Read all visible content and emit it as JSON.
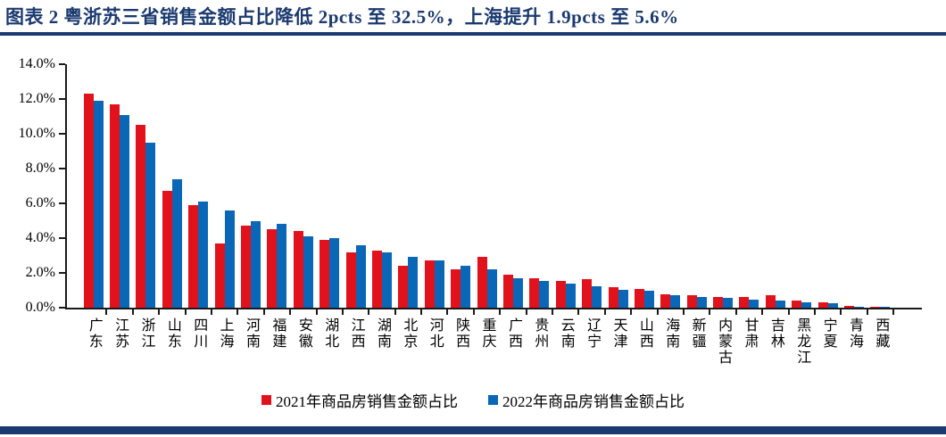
{
  "header": {
    "title": "图表 2  粤浙苏三省销售金额占比降低 2pcts 至 32.5%，上海提升 1.9pcts 至 5.6%"
  },
  "chart_data": {
    "type": "bar",
    "title": "图表 2  粤浙苏三省销售金额占比降低 2pcts 至 32.5%，上海提升 1.9pcts 至 5.6%",
    "categories": [
      "广东",
      "江苏",
      "浙江",
      "山东",
      "四川",
      "上海",
      "河南",
      "福建",
      "安徽",
      "湖北",
      "江西",
      "湖南",
      "北京",
      "河北",
      "陕西",
      "重庆",
      "广西",
      "贵州",
      "云南",
      "辽宁",
      "天津",
      "山西",
      "海南",
      "新疆",
      "内蒙古",
      "甘肃",
      "吉林",
      "黑龙江",
      "宁夏",
      "青海",
      "西藏"
    ],
    "series": [
      {
        "name": "2021年商品房销售金额占比",
        "color": "#e2121c",
        "values": [
          12.3,
          11.7,
          10.5,
          6.7,
          5.9,
          3.7,
          4.7,
          4.5,
          4.4,
          3.9,
          3.2,
          3.3,
          2.4,
          2.7,
          2.2,
          2.9,
          1.9,
          1.7,
          1.55,
          1.65,
          1.2,
          1.1,
          0.75,
          0.7,
          0.6,
          0.6,
          0.7,
          0.4,
          0.3,
          0.1,
          0.05
        ]
      },
      {
        "name": "2022年商品房销售金额占比",
        "color": "#0a66b7",
        "values": [
          11.9,
          11.1,
          9.5,
          7.4,
          6.1,
          5.6,
          5.0,
          4.8,
          4.1,
          4.0,
          3.6,
          3.2,
          2.9,
          2.7,
          2.4,
          2.2,
          1.7,
          1.55,
          1.4,
          1.25,
          1.05,
          1.0,
          0.7,
          0.6,
          0.55,
          0.45,
          0.4,
          0.3,
          0.25,
          0.07,
          0.03
        ]
      }
    ],
    "xlabel": "",
    "ylabel": "",
    "ylim": [
      0,
      14
    ],
    "ytick_step": 2,
    "ytick_labels": [
      "0.0%",
      "2.0%",
      "4.0%",
      "6.0%",
      "8.0%",
      "10.0%",
      "12.0%",
      "14.0%"
    ],
    "grid": false,
    "legend_position": "bottom"
  },
  "colors": {
    "accent_navy": "#1b3a70",
    "series_2021_red": "#e2121c",
    "series_2022_blue": "#0a66b7",
    "axis_black": "#1a1a1a"
  }
}
